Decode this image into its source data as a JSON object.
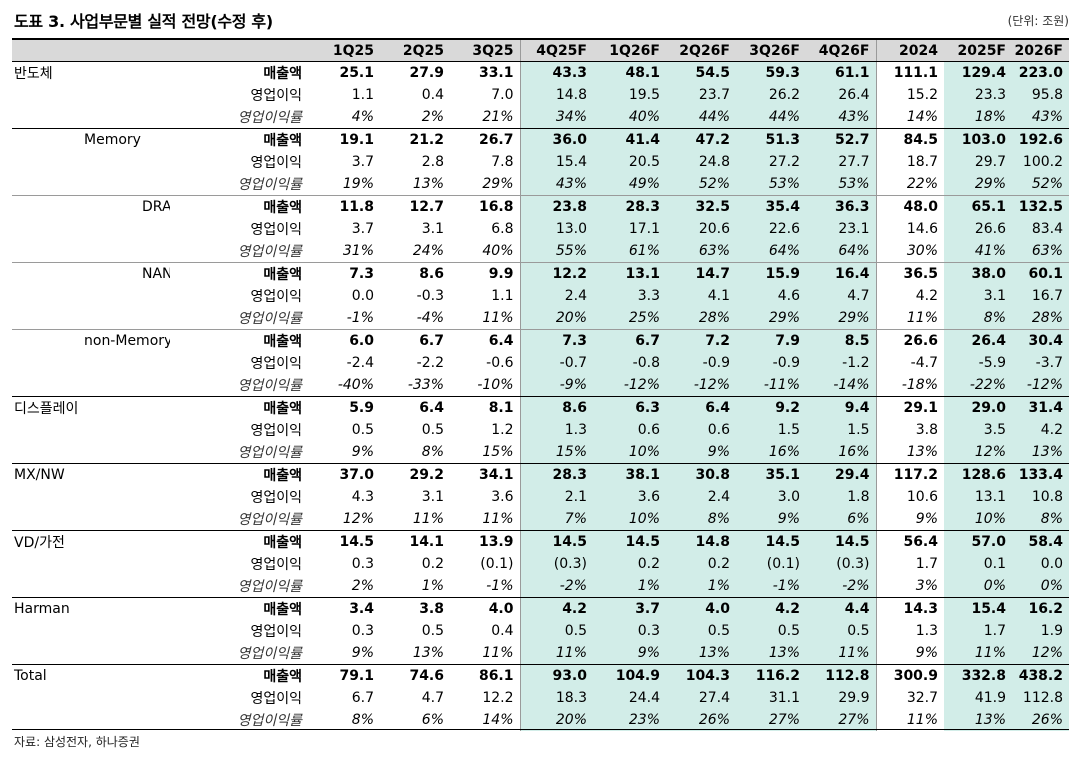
{
  "title": "도표 3. 사업부문별 실적 전망(수정 후)",
  "unit": "(단위: 조원)",
  "source": "자료: 삼성전자, 하나증권",
  "columns": [
    "1Q25",
    "2Q25",
    "3Q25",
    "4Q25F",
    "1Q26F",
    "2Q26F",
    "3Q26F",
    "4Q26F",
    "2024",
    "2025F",
    "2026F"
  ],
  "highlight_columns": [
    3,
    4,
    5,
    6,
    7,
    9,
    10
  ],
  "segments": [
    {
      "name": "반도체",
      "level": 0,
      "end": "group",
      "rows": [
        {
          "metric": "매출액",
          "type": "sales",
          "values": [
            "25.1",
            "27.9",
            "33.1",
            "43.3",
            "48.1",
            "54.5",
            "59.3",
            "61.1",
            "111.1",
            "129.4",
            "223.0"
          ]
        },
        {
          "metric": "영업이익",
          "type": "op",
          "values": [
            "1.1",
            "0.4",
            "7.0",
            "14.8",
            "19.5",
            "23.7",
            "26.2",
            "26.4",
            "15.2",
            "23.3",
            "95.8"
          ]
        },
        {
          "metric": "영업이익률",
          "type": "margin",
          "values": [
            "4%",
            "2%",
            "21%",
            "34%",
            "40%",
            "44%",
            "44%",
            "43%",
            "14%",
            "18%",
            "43%"
          ]
        }
      ]
    },
    {
      "name": "Memory",
      "level": 1,
      "end": "sub",
      "rows": [
        {
          "metric": "매출액",
          "type": "sales",
          "values": [
            "19.1",
            "21.2",
            "26.7",
            "36.0",
            "41.4",
            "47.2",
            "51.3",
            "52.7",
            "84.5",
            "103.0",
            "192.6"
          ]
        },
        {
          "metric": "영업이익",
          "type": "op",
          "values": [
            "3.7",
            "2.8",
            "7.8",
            "15.4",
            "20.5",
            "24.8",
            "27.2",
            "27.7",
            "18.7",
            "29.7",
            "100.2"
          ]
        },
        {
          "metric": "영업이익률",
          "type": "margin",
          "values": [
            "19%",
            "13%",
            "29%",
            "43%",
            "49%",
            "52%",
            "53%",
            "53%",
            "22%",
            "29%",
            "52%"
          ]
        }
      ]
    },
    {
      "name": "DRAM",
      "level": 2,
      "end": "sub2",
      "rows": [
        {
          "metric": "매출액",
          "type": "sales",
          "values": [
            "11.8",
            "12.7",
            "16.8",
            "23.8",
            "28.3",
            "32.5",
            "35.4",
            "36.3",
            "48.0",
            "65.1",
            "132.5"
          ]
        },
        {
          "metric": "영업이익",
          "type": "op",
          "values": [
            "3.7",
            "3.1",
            "6.8",
            "13.0",
            "17.1",
            "20.6",
            "22.6",
            "23.1",
            "14.6",
            "26.6",
            "83.4"
          ]
        },
        {
          "metric": "영업이익률",
          "type": "margin",
          "values": [
            "31%",
            "24%",
            "40%",
            "55%",
            "61%",
            "63%",
            "64%",
            "64%",
            "30%",
            "41%",
            "63%"
          ]
        }
      ]
    },
    {
      "name": "NAND",
      "level": 2,
      "end": "sub",
      "rows": [
        {
          "metric": "매출액",
          "type": "sales",
          "values": [
            "7.3",
            "8.6",
            "9.9",
            "12.2",
            "13.1",
            "14.7",
            "15.9",
            "16.4",
            "36.5",
            "38.0",
            "60.1"
          ]
        },
        {
          "metric": "영업이익",
          "type": "op",
          "values": [
            "0.0",
            "-0.3",
            "1.1",
            "2.4",
            "3.3",
            "4.1",
            "4.6",
            "4.7",
            "4.2",
            "3.1",
            "16.7"
          ]
        },
        {
          "metric": "영업이익률",
          "type": "margin",
          "values": [
            "-1%",
            "-4%",
            "11%",
            "20%",
            "25%",
            "28%",
            "29%",
            "29%",
            "11%",
            "8%",
            "28%"
          ]
        }
      ]
    },
    {
      "name": "non-Memory",
      "level": 1,
      "end": "group",
      "rows": [
        {
          "metric": "매출액",
          "type": "sales",
          "values": [
            "6.0",
            "6.7",
            "6.4",
            "7.3",
            "6.7",
            "7.2",
            "7.9",
            "8.5",
            "26.6",
            "26.4",
            "30.4"
          ]
        },
        {
          "metric": "영업이익",
          "type": "op",
          "values": [
            "-2.4",
            "-2.2",
            "-0.6",
            "-0.7",
            "-0.8",
            "-0.9",
            "-0.9",
            "-1.2",
            "-4.7",
            "-5.9",
            "-3.7"
          ]
        },
        {
          "metric": "영업이익률",
          "type": "margin",
          "values": [
            "-40%",
            "-33%",
            "-10%",
            "-9%",
            "-12%",
            "-12%",
            "-11%",
            "-14%",
            "-18%",
            "-22%",
            "-12%"
          ]
        }
      ]
    },
    {
      "name": "디스플레이",
      "level": 0,
      "end": "group",
      "rows": [
        {
          "metric": "매출액",
          "type": "sales",
          "values": [
            "5.9",
            "6.4",
            "8.1",
            "8.6",
            "6.3",
            "6.4",
            "9.2",
            "9.4",
            "29.1",
            "29.0",
            "31.4"
          ]
        },
        {
          "metric": "영업이익",
          "type": "op",
          "values": [
            "0.5",
            "0.5",
            "1.2",
            "1.3",
            "0.6",
            "0.6",
            "1.5",
            "1.5",
            "3.8",
            "3.5",
            "4.2"
          ]
        },
        {
          "metric": "영업이익률",
          "type": "margin",
          "values": [
            "9%",
            "8%",
            "15%",
            "15%",
            "10%",
            "9%",
            "16%",
            "16%",
            "13%",
            "12%",
            "13%"
          ]
        }
      ]
    },
    {
      "name": "MX/NW",
      "level": 0,
      "end": "group",
      "rows": [
        {
          "metric": "매출액",
          "type": "sales",
          "values": [
            "37.0",
            "29.2",
            "34.1",
            "28.3",
            "38.1",
            "30.8",
            "35.1",
            "29.4",
            "117.2",
            "128.6",
            "133.4"
          ]
        },
        {
          "metric": "영업이익",
          "type": "op",
          "values": [
            "4.3",
            "3.1",
            "3.6",
            "2.1",
            "3.6",
            "2.4",
            "3.0",
            "1.8",
            "10.6",
            "13.1",
            "10.8"
          ]
        },
        {
          "metric": "영업이익률",
          "type": "margin",
          "values": [
            "12%",
            "11%",
            "11%",
            "7%",
            "10%",
            "8%",
            "9%",
            "6%",
            "9%",
            "10%",
            "8%"
          ]
        }
      ]
    },
    {
      "name": "VD/가전",
      "level": 0,
      "end": "group",
      "rows": [
        {
          "metric": "매출액",
          "type": "sales",
          "values": [
            "14.5",
            "14.1",
            "13.9",
            "14.5",
            "14.5",
            "14.8",
            "14.5",
            "14.5",
            "56.4",
            "57.0",
            "58.4"
          ]
        },
        {
          "metric": "영업이익",
          "type": "op",
          "values": [
            "0.3",
            "0.2",
            "(0.1)",
            "(0.3)",
            "0.2",
            "0.2",
            "(0.1)",
            "(0.3)",
            "1.7",
            "0.1",
            "0.0"
          ]
        },
        {
          "metric": "영업이익률",
          "type": "margin",
          "values": [
            "2%",
            "1%",
            "-1%",
            "-2%",
            "1%",
            "1%",
            "-1%",
            "-2%",
            "3%",
            "0%",
            "0%"
          ]
        }
      ]
    },
    {
      "name": "Harman",
      "level": 0,
      "end": "group",
      "rows": [
        {
          "metric": "매출액",
          "type": "sales",
          "values": [
            "3.4",
            "3.8",
            "4.0",
            "4.2",
            "3.7",
            "4.0",
            "4.2",
            "4.4",
            "14.3",
            "15.4",
            "16.2"
          ]
        },
        {
          "metric": "영업이익",
          "type": "op",
          "values": [
            "0.3",
            "0.5",
            "0.4",
            "0.5",
            "0.3",
            "0.5",
            "0.5",
            "0.5",
            "1.3",
            "1.7",
            "1.9"
          ]
        },
        {
          "metric": "영업이익률",
          "type": "margin",
          "values": [
            "9%",
            "13%",
            "11%",
            "11%",
            "9%",
            "13%",
            "13%",
            "11%",
            "9%",
            "11%",
            "12%"
          ]
        }
      ]
    },
    {
      "name": "Total",
      "level": 0,
      "end": "none",
      "rows": [
        {
          "metric": "매출액",
          "type": "sales",
          "values": [
            "79.1",
            "74.6",
            "86.1",
            "93.0",
            "104.9",
            "104.3",
            "116.2",
            "112.8",
            "300.9",
            "332.8",
            "438.2"
          ]
        },
        {
          "metric": "영업이익",
          "type": "op",
          "values": [
            "6.7",
            "4.7",
            "12.2",
            "18.3",
            "24.4",
            "27.4",
            "31.1",
            "29.9",
            "32.7",
            "41.9",
            "112.8"
          ]
        },
        {
          "metric": "영업이익률",
          "type": "margin",
          "values": [
            "8%",
            "6%",
            "14%",
            "20%",
            "23%",
            "26%",
            "27%",
            "27%",
            "11%",
            "13%",
            "26%"
          ]
        }
      ]
    }
  ]
}
